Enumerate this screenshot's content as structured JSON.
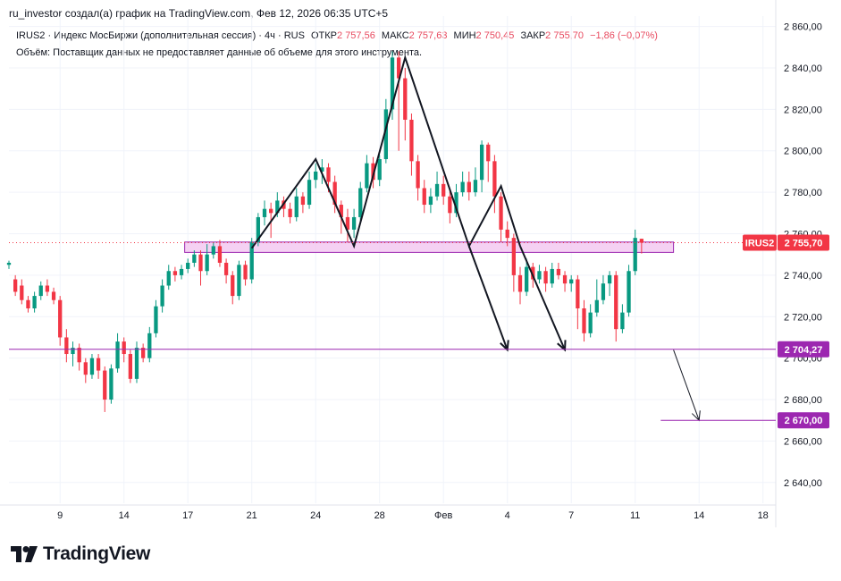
{
  "caption": "ru_investor создал(а) график на TradingView.com, Фев 12, 2026 06:35 UTC+5",
  "legend": {
    "symbol": "IRUS2",
    "description": "Индекс МосБиржи (дополнительная сессия)",
    "interval": "4ч",
    "exchange": "RUS",
    "open_label": "ОТКР",
    "open_value": "2 757,56",
    "high_label": "МАКС",
    "high_value": "2 757,63",
    "low_label": "МИН",
    "low_value": "2 750,45",
    "close_label": "ЗАКР",
    "close_value": "2 755,70",
    "change": "−1,86 (−0,07%)",
    "volume_label": "Объём:",
    "volume_text": "Поставщик данных не предоставляет данные об объеме для этого инструмента."
  },
  "brand": {
    "logo_text": "TradingView"
  },
  "colors": {
    "up": "#089981",
    "down": "#f23645",
    "purple": "#9c27b0",
    "zone_fill": "#f3c6f0"
  },
  "chart_data": {
    "type": "candlestick",
    "title": "IRUS2 · Индекс МосБиржи (дополнительная сессия) · 4ч",
    "y_range": [
      2630,
      2865
    ],
    "y_ticks": [
      2640,
      2660,
      2680,
      2700,
      2720,
      2740,
      2760,
      2780,
      2800,
      2820,
      2840,
      2860
    ],
    "y_tick_labels": [
      "2 640,00",
      "2 660,00",
      "2 680,00",
      "2 700,00",
      "2 720,00",
      "2 740,00",
      "2 760,00",
      "2 780,00",
      "2 800,00",
      "2 820,00",
      "2 840,00",
      "2 860,00"
    ],
    "x_range": [
      0,
      120
    ],
    "x_ticks": [
      {
        "x": 8,
        "label": "9"
      },
      {
        "x": 18,
        "label": "14"
      },
      {
        "x": 28,
        "label": "17"
      },
      {
        "x": 38,
        "label": "21"
      },
      {
        "x": 48,
        "label": "24"
      },
      {
        "x": 58,
        "label": "28"
      },
      {
        "x": 68,
        "label": "Фев"
      },
      {
        "x": 78,
        "label": "4"
      },
      {
        "x": 88,
        "label": "7"
      },
      {
        "x": 98,
        "label": "11"
      },
      {
        "x": 108,
        "label": "14"
      },
      {
        "x": 118,
        "label": "18"
      }
    ],
    "candles": [
      [
        2745,
        2746,
        2743,
        2747
      ],
      [
        2738,
        2732,
        2730,
        2740
      ],
      [
        2735,
        2728,
        2726,
        2738
      ],
      [
        2728,
        2724,
        2722,
        2730
      ],
      [
        2724,
        2730,
        2722,
        2732
      ],
      [
        2730,
        2735,
        2728,
        2737
      ],
      [
        2735,
        2732,
        2730,
        2738
      ],
      [
        2732,
        2728,
        2726,
        2734
      ],
      [
        2728,
        2710,
        2706,
        2730
      ],
      [
        2710,
        2702,
        2698,
        2714
      ],
      [
        2702,
        2705,
        2696,
        2708
      ],
      [
        2705,
        2698,
        2694,
        2707
      ],
      [
        2698,
        2692,
        2688,
        2700
      ],
      [
        2692,
        2700,
        2690,
        2702
      ],
      [
        2700,
        2694,
        2690,
        2702
      ],
      [
        2694,
        2680,
        2674,
        2696
      ],
      [
        2680,
        2695,
        2678,
        2697
      ],
      [
        2695,
        2708,
        2693,
        2712
      ],
      [
        2708,
        2702,
        2698,
        2710
      ],
      [
        2702,
        2690,
        2688,
        2704
      ],
      [
        2690,
        2705,
        2688,
        2708
      ],
      [
        2705,
        2700,
        2698,
        2707
      ],
      [
        2700,
        2712,
        2698,
        2715
      ],
      [
        2712,
        2725,
        2710,
        2728
      ],
      [
        2725,
        2735,
        2722,
        2738
      ],
      [
        2735,
        2742,
        2733,
        2745
      ],
      [
        2742,
        2740,
        2737,
        2744
      ],
      [
        2740,
        2743,
        2738,
        2745
      ],
      [
        2743,
        2746,
        2741,
        2748
      ],
      [
        2746,
        2750,
        2744,
        2752
      ],
      [
        2750,
        2742,
        2735,
        2752
      ],
      [
        2742,
        2750,
        2740,
        2755
      ],
      [
        2750,
        2754,
        2748,
        2756
      ],
      [
        2754,
        2746,
        2744,
        2757
      ],
      [
        2746,
        2740,
        2736,
        2748
      ],
      [
        2740,
        2730,
        2726,
        2742
      ],
      [
        2730,
        2745,
        2728,
        2747
      ],
      [
        2745,
        2738,
        2735,
        2747
      ],
      [
        2738,
        2756,
        2736,
        2758
      ],
      [
        2756,
        2768,
        2754,
        2770
      ],
      [
        2768,
        2772,
        2764,
        2776
      ],
      [
        2772,
        2770,
        2758,
        2775
      ],
      [
        2770,
        2776,
        2768,
        2780
      ],
      [
        2776,
        2772,
        2768,
        2778
      ],
      [
        2772,
        2768,
        2765,
        2775
      ],
      [
        2768,
        2778,
        2766,
        2782
      ],
      [
        2778,
        2774,
        2770,
        2780
      ],
      [
        2774,
        2786,
        2772,
        2790
      ],
      [
        2786,
        2790,
        2782,
        2794
      ],
      [
        2790,
        2792,
        2784,
        2796
      ],
      [
        2792,
        2785,
        2780,
        2794
      ],
      [
        2785,
        2774,
        2770,
        2788
      ],
      [
        2774,
        2768,
        2760,
        2776
      ],
      [
        2768,
        2762,
        2756,
        2772
      ],
      [
        2762,
        2768,
        2758,
        2772
      ],
      [
        2768,
        2782,
        2766,
        2785
      ],
      [
        2782,
        2794,
        2780,
        2798
      ],
      [
        2794,
        2786,
        2782,
        2797
      ],
      [
        2786,
        2796,
        2783,
        2798
      ],
      [
        2796,
        2820,
        2794,
        2825
      ],
      [
        2820,
        2845,
        2815,
        2848
      ],
      [
        2845,
        2835,
        2800,
        2848
      ],
      [
        2835,
        2815,
        2805,
        2840
      ],
      [
        2815,
        2795,
        2788,
        2818
      ],
      [
        2795,
        2782,
        2776,
        2798
      ],
      [
        2782,
        2774,
        2770,
        2786
      ],
      [
        2774,
        2778,
        2770,
        2782
      ],
      [
        2778,
        2784,
        2776,
        2790
      ],
      [
        2784,
        2778,
        2774,
        2788
      ],
      [
        2778,
        2770,
        2765,
        2782
      ],
      [
        2770,
        2780,
        2768,
        2784
      ],
      [
        2780,
        2785,
        2778,
        2790
      ],
      [
        2785,
        2780,
        2776,
        2790
      ],
      [
        2780,
        2786,
        2778,
        2792
      ],
      [
        2786,
        2803,
        2780,
        2805
      ],
      [
        2803,
        2795,
        2785,
        2804
      ],
      [
        2795,
        2778,
        2770,
        2798
      ],
      [
        2778,
        2762,
        2756,
        2780
      ],
      [
        2762,
        2758,
        2754,
        2766
      ],
      [
        2758,
        2740,
        2732,
        2760
      ],
      [
        2740,
        2732,
        2726,
        2744
      ],
      [
        2732,
        2744,
        2730,
        2748
      ],
      [
        2744,
        2738,
        2734,
        2746
      ],
      [
        2738,
        2742,
        2736,
        2745
      ],
      [
        2742,
        2736,
        2732,
        2744
      ],
      [
        2736,
        2743,
        2734,
        2746
      ],
      [
        2743,
        2740,
        2738,
        2746
      ],
      [
        2740,
        2736,
        2732,
        2742
      ],
      [
        2736,
        2738,
        2732,
        2740
      ],
      [
        2738,
        2724,
        2714,
        2740
      ],
      [
        2724,
        2712,
        2708,
        2728
      ],
      [
        2712,
        2722,
        2710,
        2726
      ],
      [
        2722,
        2728,
        2720,
        2738
      ],
      [
        2728,
        2736,
        2726,
        2740
      ],
      [
        2736,
        2740,
        2730,
        2742
      ],
      [
        2740,
        2714,
        2708,
        2742
      ],
      [
        2714,
        2722,
        2712,
        2726
      ],
      [
        2722,
        2742,
        2720,
        2745
      ],
      [
        2742,
        2758,
        2740,
        2762
      ],
      [
        2757.56,
        2755.7,
        2750.45,
        2757.63
      ]
    ],
    "resistance_zone": {
      "x1": 27.5,
      "x2": 104,
      "y_low": 2751,
      "y_high": 2756
    },
    "support_line": {
      "value": 2704.27,
      "label": "2 704,27"
    },
    "target_line": {
      "value": 2670,
      "label": "2 670,00",
      "x_start": 102
    },
    "last_price": {
      "value": 2755.7,
      "symbol_label": "IRUS2",
      "price_label": "2 755,70"
    },
    "pattern_lines": [
      [
        [
          38,
          2753
        ],
        [
          48,
          2796
        ],
        [
          54,
          2754
        ],
        [
          62,
          2845
        ],
        [
          72,
          2754
        ],
        [
          77,
          2783
        ],
        [
          80,
          2754
        ]
      ],
      [
        [
          72,
          2754
        ],
        [
          78,
          2704
        ]
      ],
      [
        [
          80,
          2754
        ],
        [
          87,
          2704
        ]
      ],
      [
        [
          104,
          2704
        ],
        [
          108,
          2670
        ]
      ]
    ]
  }
}
